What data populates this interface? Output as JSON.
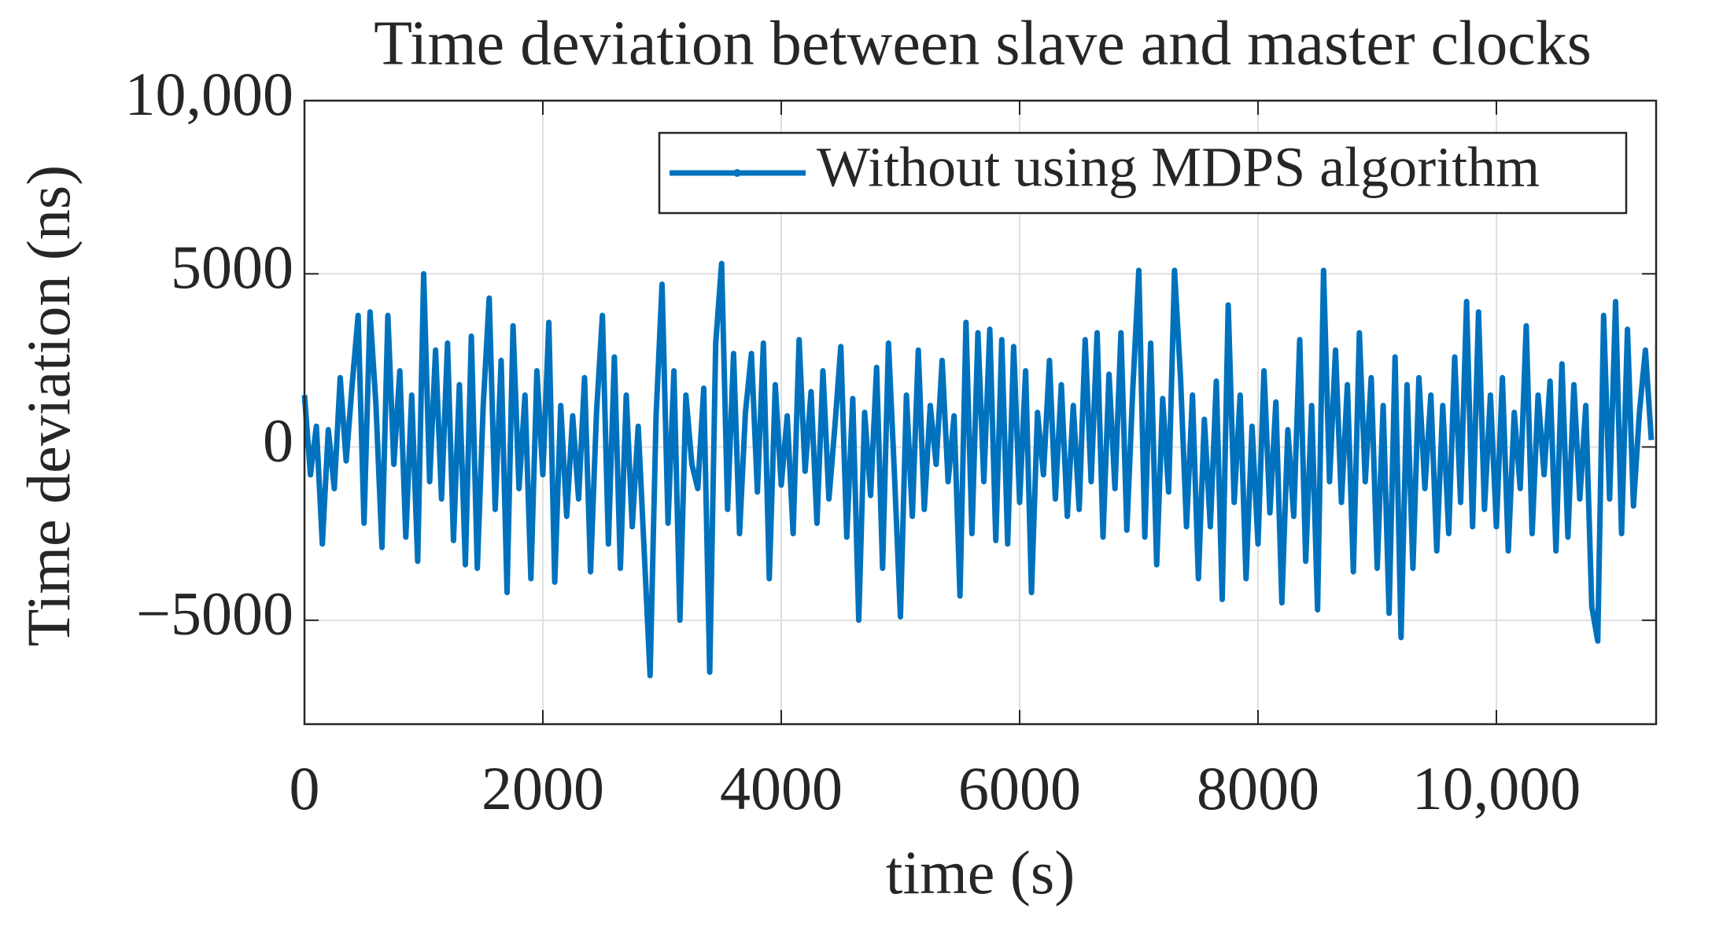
{
  "chart_data": {
    "type": "line",
    "title": "Time deviation between slave and master clocks",
    "xlabel": "time (s)",
    "ylabel": "Time deviation (ns)",
    "xlim": [
      0,
      11340
    ],
    "ylim": [
      -8000,
      10000
    ],
    "xticks": [
      0,
      2000,
      4000,
      6000,
      8000,
      {
        "value": 10000,
        "label": "10,000"
      }
    ],
    "yticks": [
      {
        "value": -5000,
        "label": "−5000"
      },
      0,
      5000,
      {
        "value": 10000,
        "label": "10,000"
      }
    ],
    "grid": true,
    "legend": "upper right",
    "x": [
      0,
      50,
      100,
      150,
      200,
      250,
      300,
      350,
      400,
      450,
      500,
      550,
      600,
      650,
      700,
      750,
      800,
      850,
      900,
      950,
      1000,
      1050,
      1100,
      1150,
      1200,
      1250,
      1300,
      1350,
      1400,
      1450,
      1500,
      1550,
      1600,
      1650,
      1700,
      1750,
      1800,
      1850,
      1900,
      1950,
      2000,
      2050,
      2100,
      2150,
      2200,
      2250,
      2300,
      2350,
      2400,
      2450,
      2500,
      2550,
      2600,
      2650,
      2700,
      2750,
      2800,
      2850,
      2900,
      2950,
      3000,
      3050,
      3100,
      3150,
      3200,
      3250,
      3300,
      3350,
      3400,
      3450,
      3500,
      3550,
      3600,
      3650,
      3700,
      3750,
      3800,
      3850,
      3900,
      3950,
      4000,
      4050,
      4100,
      4150,
      4200,
      4250,
      4300,
      4350,
      4400,
      4450,
      4500,
      4550,
      4600,
      4650,
      4700,
      4750,
      4800,
      4850,
      4900,
      4950,
      5000,
      5050,
      5100,
      5150,
      5200,
      5250,
      5300,
      5350,
      5400,
      5450,
      5500,
      5550,
      5600,
      5650,
      5700,
      5750,
      5800,
      5850,
      5900,
      5950,
      6000,
      6050,
      6100,
      6150,
      6200,
      6250,
      6300,
      6350,
      6400,
      6450,
      6500,
      6550,
      6600,
      6650,
      6700,
      6750,
      6800,
      6850,
      6900,
      6950,
      7000,
      7050,
      7100,
      7150,
      7200,
      7250,
      7300,
      7350,
      7400,
      7450,
      7500,
      7550,
      7600,
      7650,
      7700,
      7750,
      7800,
      7850,
      7900,
      7950,
      8000,
      8050,
      8100,
      8150,
      8200,
      8250,
      8300,
      8350,
      8400,
      8450,
      8500,
      8550,
      8600,
      8650,
      8700,
      8750,
      8800,
      8850,
      8900,
      8950,
      9000,
      9050,
      9100,
      9150,
      9200,
      9250,
      9300,
      9350,
      9400,
      9450,
      9500,
      9550,
      9600,
      9650,
      9700,
      9750,
      9800,
      9850,
      9900,
      9950,
      10000,
      10050,
      10100,
      10150,
      10200,
      10250,
      10300,
      10350,
      10400,
      10450,
      10500,
      10550,
      10600,
      10650,
      10700,
      10750,
      10800,
      10850,
      10900,
      10950,
      11000,
      11050,
      11100,
      11150,
      11200,
      11250,
      11300
    ],
    "series": [
      {
        "name": "Without using MDPS algorithm",
        "color": "#0072bd",
        "values": [
          1500,
          -800,
          600,
          -2800,
          500,
          -1200,
          2000,
          -400,
          1800,
          3800,
          -2200,
          3900,
          1200,
          -2900,
          3800,
          -500,
          2200,
          -2600,
          1500,
          -3300,
          5000,
          -1000,
          2800,
          -1500,
          3000,
          -2700,
          1800,
          -3400,
          3200,
          -3500,
          1200,
          4300,
          -1800,
          2500,
          -4200,
          3500,
          -1200,
          1500,
          -3800,
          2200,
          -800,
          3600,
          -3900,
          1200,
          -2000,
          900,
          -1500,
          2000,
          -3600,
          1000,
          3800,
          -2800,
          2600,
          -3500,
          1500,
          -2300,
          600,
          -3000,
          -6600,
          900,
          4700,
          -2200,
          2200,
          -5000,
          1500,
          -500,
          -1200,
          1700,
          -6500,
          3000,
          5300,
          -1800,
          2700,
          -2500,
          1000,
          2700,
          -1300,
          3000,
          -3800,
          1800,
          -1100,
          900,
          -2500,
          3100,
          -700,
          1600,
          -2200,
          2200,
          -1500,
          600,
          2900,
          -2600,
          1400,
          -5000,
          1000,
          -1400,
          2300,
          -3500,
          3000,
          -800,
          -4900,
          1500,
          -2000,
          2800,
          -1800,
          1200,
          -500,
          2500,
          -1000,
          900,
          -4300,
          3600,
          -2500,
          3300,
          -1000,
          3400,
          -2700,
          3100,
          -2800,
          2900,
          -1600,
          2200,
          -4200,
          1000,
          -800,
          2500,
          -1500,
          1800,
          -2000,
          1200,
          -1800,
          3100,
          -1000,
          3300,
          -2600,
          2100,
          -1200,
          3300,
          -2400,
          1700,
          5100,
          -2600,
          3000,
          -3400,
          1400,
          -1300,
          5100,
          2000,
          -2300,
          1500,
          -3800,
          800,
          -2300,
          1900,
          -4400,
          4100,
          -1600,
          1500,
          -3800,
          600,
          -2800,
          2200,
          -1900,
          1300,
          -4500,
          500,
          -2000,
          3100,
          -3300,
          1200,
          -4700,
          5100,
          -1000,
          2800,
          -1600,
          1800,
          -3600,
          3300,
          -1000,
          2000,
          -3500,
          1200,
          -4800,
          2600,
          -5500,
          1800,
          -3500,
          2000,
          -1200,
          1500,
          -3000,
          1200,
          -2500,
          2600,
          -1600,
          4200,
          -2300,
          3900,
          -1800,
          1500,
          -2300,
          2000,
          -3000,
          1000,
          -1200,
          3500,
          -2500,
          1500,
          -800,
          1900,
          -3000,
          2400,
          -2600,
          1800,
          -1500,
          1200,
          -4600,
          -5600,
          3800,
          -1500,
          4200,
          -2500,
          3400,
          -1700,
          1000,
          2800,
          200
        ]
      }
    ]
  }
}
